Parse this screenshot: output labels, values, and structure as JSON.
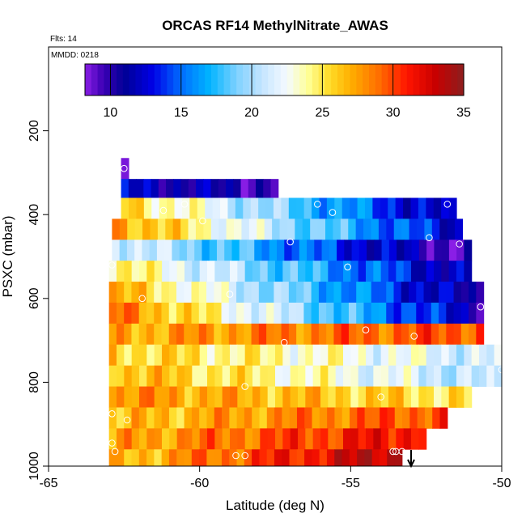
{
  "chart_data": {
    "type": "heatmap",
    "title": "ORCAS RF14 MethylNitrate_AWAS",
    "flights_label": "Flts: 14",
    "date_label": "MMDD: 0218",
    "xlabel": "Latitude (deg N)",
    "ylabel": "PSXC (mbar)",
    "xlim": [
      -65,
      -50
    ],
    "ylim": [
      1000,
      0
    ],
    "xticks": [
      -65,
      -60,
      -55,
      -50
    ],
    "xtick_labels": [
      "-65",
      "-60",
      "-55",
      "-50"
    ],
    "yticks": [
      200,
      400,
      600,
      800,
      1000
    ],
    "ytick_labels": [
      "200",
      "400",
      "600",
      "800",
      "1000"
    ],
    "colorbar": {
      "range": [
        8.2,
        35
      ],
      "ticks": [
        10,
        15,
        20,
        25,
        30,
        35
      ],
      "tick_labels": [
        "10",
        "15",
        "20",
        "25",
        "30",
        "35"
      ]
    },
    "rows": [
      {
        "p0": 265,
        "p1": 315,
        "lat0": -62.6,
        "lat1": -62.35,
        "v0": 8.5,
        "v1": 8.5
      },
      {
        "p0": 315,
        "p1": 360,
        "lat0": -62.6,
        "lat1": -57.4,
        "v0": 12,
        "v1": 10
      },
      {
        "p0": 360,
        "p1": 410,
        "lat0": -62.6,
        "lat1": -51.5,
        "v0": 26,
        "v1": 11
      },
      {
        "p0": 410,
        "p1": 460,
        "lat0": -62.9,
        "lat1": -51.3,
        "v0": 28,
        "v1": 12
      },
      {
        "p0": 460,
        "p1": 510,
        "lat0": -62.9,
        "lat1": -51.0,
        "v0": 22,
        "v1": 9
      },
      {
        "p0": 510,
        "p1": 560,
        "lat0": -63.0,
        "lat1": -51.0,
        "v0": 25,
        "v1": 11
      },
      {
        "p0": 560,
        "p1": 610,
        "lat0": -63.0,
        "lat1": -50.6,
        "v0": 27,
        "v1": 10
      },
      {
        "p0": 610,
        "p1": 660,
        "lat0": -63.0,
        "lat1": -50.6,
        "v0": 29,
        "v1": 11
      },
      {
        "p0": 660,
        "p1": 710,
        "lat0": -63.0,
        "lat1": -50.6,
        "v0": 27,
        "v1": 30
      },
      {
        "p0": 710,
        "p1": 760,
        "lat0": -63.0,
        "lat1": -50.0,
        "v0": 26,
        "v1": 21
      },
      {
        "p0": 760,
        "p1": 810,
        "lat0": -63.0,
        "lat1": -50.0,
        "v0": 27,
        "v1": 20
      },
      {
        "p0": 810,
        "p1": 860,
        "lat0": -63.0,
        "lat1": -51.0,
        "v0": 28,
        "v1": 25
      },
      {
        "p0": 860,
        "p1": 910,
        "lat0": -63.0,
        "lat1": -51.8,
        "v0": 26,
        "v1": 30
      },
      {
        "p0": 910,
        "p1": 960,
        "lat0": -63.0,
        "lat1": -52.5,
        "v0": 27,
        "v1": 32
      },
      {
        "p0": 960,
        "p1": 1000,
        "lat0": -63.0,
        "lat1": -53.3,
        "v0": 26,
        "v1": 34
      }
    ],
    "samples": [
      {
        "lat": -62.5,
        "p": 290
      },
      {
        "lat": -61.2,
        "p": 390
      },
      {
        "lat": -60.5,
        "p": 375
      },
      {
        "lat": -59.9,
        "p": 415
      },
      {
        "lat": -56.1,
        "p": 375
      },
      {
        "lat": -55.6,
        "p": 395
      },
      {
        "lat": -51.8,
        "p": 375
      },
      {
        "lat": -57.0,
        "p": 465
      },
      {
        "lat": -52.4,
        "p": 455
      },
      {
        "lat": -51.4,
        "p": 470
      },
      {
        "lat": -55.1,
        "p": 525
      },
      {
        "lat": -62.9,
        "p": 520
      },
      {
        "lat": -61.9,
        "p": 600
      },
      {
        "lat": -59.0,
        "p": 590
      },
      {
        "lat": -50.7,
        "p": 620
      },
      {
        "lat": -57.2,
        "p": 705
      },
      {
        "lat": -54.5,
        "p": 675
      },
      {
        "lat": -52.9,
        "p": 690
      },
      {
        "lat": -50.0,
        "p": 770
      },
      {
        "lat": -58.5,
        "p": 810
      },
      {
        "lat": -54.0,
        "p": 835
      },
      {
        "lat": -62.9,
        "p": 875
      },
      {
        "lat": -62.4,
        "p": 890
      },
      {
        "lat": -62.9,
        "p": 945
      },
      {
        "lat": -62.8,
        "p": 965
      },
      {
        "lat": -58.8,
        "p": 975
      },
      {
        "lat": -58.5,
        "p": 975
      },
      {
        "lat": -53.6,
        "p": 965
      },
      {
        "lat": -53.5,
        "p": 965
      },
      {
        "lat": -53.3,
        "p": 965
      }
    ],
    "arrow": {
      "lat": -53.0,
      "direction": "down"
    }
  }
}
